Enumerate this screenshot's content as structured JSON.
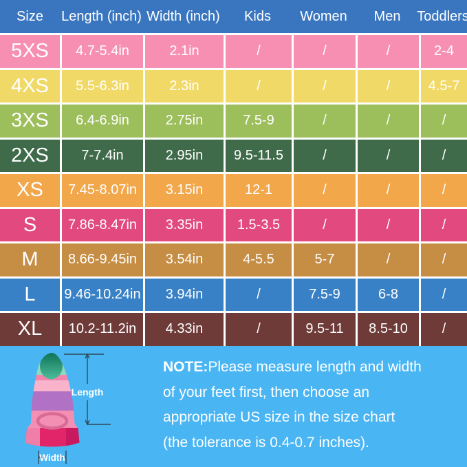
{
  "chart_data": {
    "type": "table",
    "columns": [
      "Size",
      "Length (inch)",
      "Width (inch)",
      "Kids",
      "Women",
      "Men",
      "Toddlers"
    ],
    "rows": [
      {
        "size": "5XS",
        "length_inch": "4.7-5.4in",
        "width_inch": "2.1in",
        "kids": "/",
        "women": "/",
        "men": "/",
        "toddlers": "2-4",
        "row_color": "#F78FB3"
      },
      {
        "size": "4XS",
        "length_inch": "5.5-6.3in",
        "width_inch": "2.3in",
        "kids": "/",
        "women": "/",
        "men": "/",
        "toddlers": "4.5-7",
        "row_color": "#F1D968"
      },
      {
        "size": "3XS",
        "length_inch": "6.4-6.9in",
        "width_inch": "2.75in",
        "kids": "7.5-9",
        "women": "/",
        "men": "/",
        "toddlers": "/",
        "row_color": "#9CBE5B"
      },
      {
        "size": "2XS",
        "length_inch": "7-7.4in",
        "width_inch": "2.95in",
        "kids": "9.5-11.5",
        "women": "/",
        "men": "/",
        "toddlers": "/",
        "row_color": "#406B4B"
      },
      {
        "size": "XS",
        "length_inch": "7.45-8.07in",
        "width_inch": "3.15in",
        "kids": "12-1",
        "women": "/",
        "men": "/",
        "toddlers": "/",
        "row_color": "#F2A74B"
      },
      {
        "size": "S",
        "length_inch": "7.86-8.47in",
        "width_inch": "3.35in",
        "kids": "1.5-3.5",
        "women": "/",
        "men": "/",
        "toddlers": "/",
        "row_color": "#E1497F"
      },
      {
        "size": "M",
        "length_inch": "8.66-9.45in",
        "width_inch": "3.54in",
        "kids": "4-5.5",
        "women": "5-7",
        "men": "/",
        "toddlers": "/",
        "row_color": "#C68D44"
      },
      {
        "size": "L",
        "length_inch": "9.46-10.24in",
        "width_inch": "3.94in",
        "kids": "/",
        "women": "7.5-9",
        "men": "6-8",
        "toddlers": "/",
        "row_color": "#3981C6"
      },
      {
        "size": "XL",
        "length_inch": "10.2-11.2in",
        "width_inch": "4.33in",
        "kids": "/",
        "women": "9.5-11",
        "men": "8.5-10",
        "toddlers": "/",
        "row_color": "#6E3B38"
      }
    ],
    "header_bg": "#3A76C0",
    "text_color": "#FFFFFF",
    "grid": "white separator lines",
    "legend_position": "none"
  },
  "note": {
    "prefix": "NOTE:",
    "lines": [
      "Please measure length and width",
      "of your feet first, then choose an",
      "appropriate US size in the size chart",
      "(the tolerance is 0.4-0.7 inches)."
    ]
  },
  "fin_diagram": {
    "length_label": "Length",
    "width_label": "Width"
  },
  "colors": {
    "background": "#4AB5F3",
    "separator": "#FFFFFF"
  }
}
